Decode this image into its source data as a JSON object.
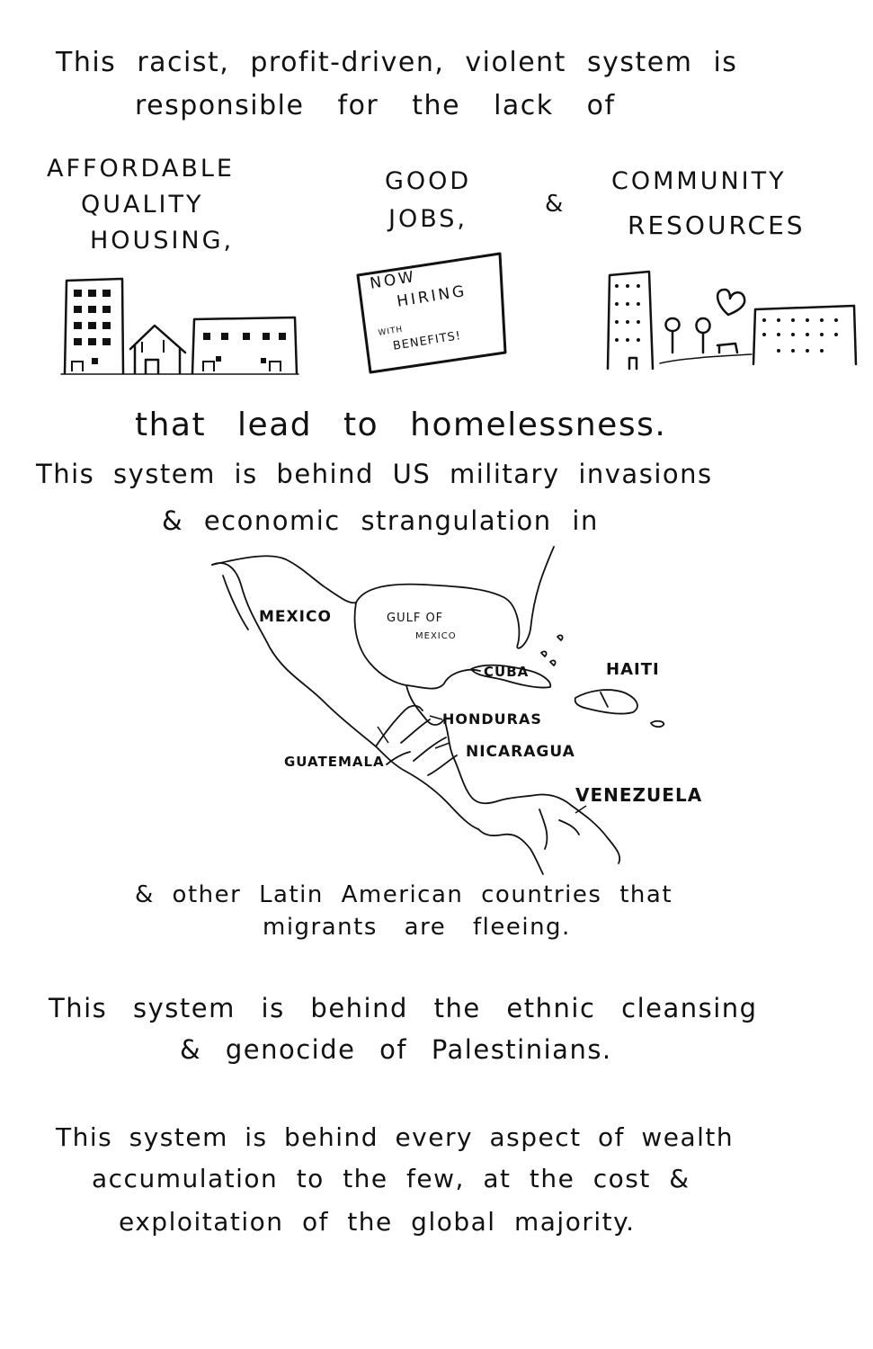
{
  "intro": {
    "line1": "This racist, profit-driven, violent system is",
    "line2": "responsible for the lack of"
  },
  "needs": {
    "housing": [
      "AFFORDABLE",
      "QUALITY",
      "HOUSING,"
    ],
    "jobs": [
      "GOOD",
      "JOBS,"
    ],
    "amp": "&",
    "community": [
      "COMMUNITY",
      "RESOURCES"
    ]
  },
  "sign": {
    "line1": "NOW",
    "line2": "HIRING",
    "line3": "WITH",
    "line4": "BENEFITS!"
  },
  "homelessness": "that lead to homelessness.",
  "military": {
    "line1": "This system is behind US military invasions",
    "line2": "& economic strangulation in"
  },
  "map_labels": {
    "mexico": "MEXICO",
    "gulf": "GULF OF",
    "gulf2": "MEXICO",
    "cuba": "CUBA",
    "haiti": "HAITI",
    "honduras": "HONDURAS",
    "guatemala": "GUATEMALA",
    "nicaragua": "NICARAGUA",
    "venezuela": "VENEZUELA"
  },
  "latin": {
    "line1": "& other Latin American countries that",
    "line2": "migrants are fleeing."
  },
  "palestine": {
    "line1": "This system is behind the ethnic cleansing",
    "line2": "& genocide of Palestinians."
  },
  "wealth": {
    "line1": "This system is behind every aspect of wealth",
    "line2": "accumulation to the few, at the cost &",
    "line3": "exploitation of the global majority."
  }
}
